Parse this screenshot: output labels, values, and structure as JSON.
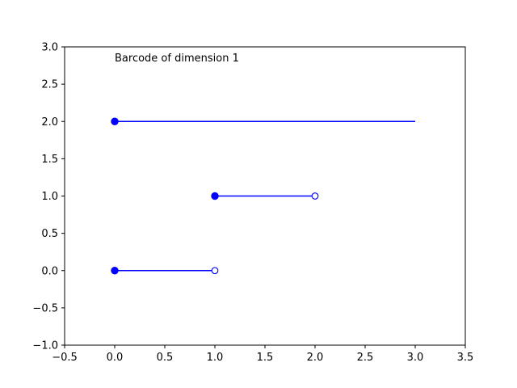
{
  "chart_data": {
    "type": "barcode",
    "annotation": "Barcode of dimension 1",
    "xlim": [
      -0.5,
      3.5
    ],
    "ylim": [
      -1.0,
      3.0
    ],
    "xticks": [
      -0.5,
      0.0,
      0.5,
      1.0,
      1.5,
      2.0,
      2.5,
      3.0,
      3.5
    ],
    "yticks": [
      -1.0,
      -0.5,
      0.0,
      0.5,
      1.0,
      1.5,
      2.0,
      2.5,
      3.0
    ],
    "xtick_labels": [
      "−0.5",
      "0.0",
      "0.5",
      "1.0",
      "1.5",
      "2.0",
      "2.5",
      "3.0",
      "3.5"
    ],
    "ytick_labels": [
      "−1.0",
      "−0.5",
      "0.0",
      "0.5",
      "1.0",
      "1.5",
      "2.0",
      "2.5",
      "3.0"
    ],
    "grid": false,
    "color": "#0000ff",
    "bars": [
      {
        "y": 0,
        "birth": 0.0,
        "death": 1.0,
        "closed_start": true,
        "closed_end": false
      },
      {
        "y": 1,
        "birth": 1.0,
        "death": 2.0,
        "closed_start": true,
        "closed_end": false
      },
      {
        "y": 2,
        "birth": 0.0,
        "death": 3.0,
        "closed_start": true,
        "closed_end": null
      }
    ]
  }
}
